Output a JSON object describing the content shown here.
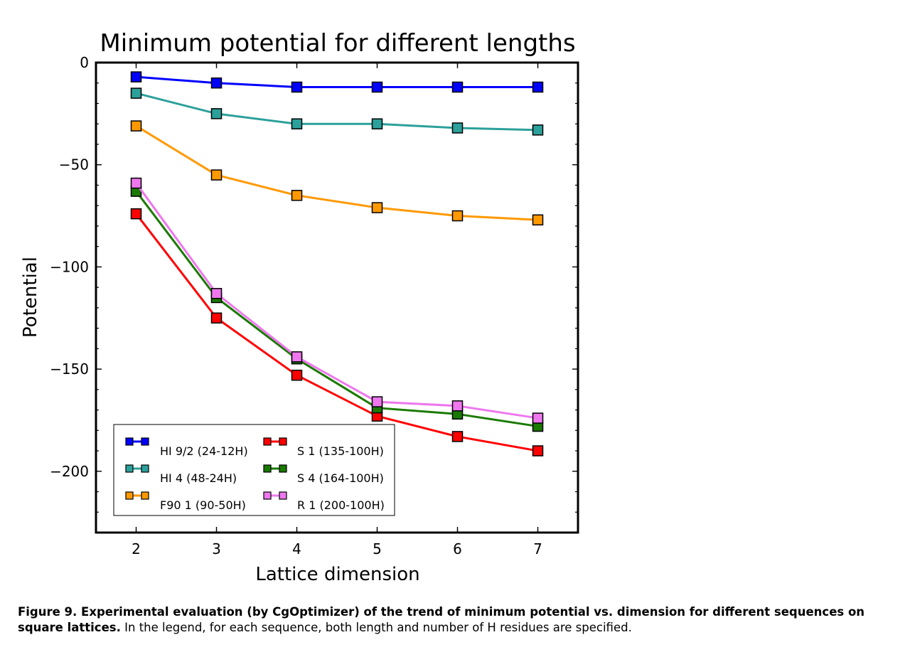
{
  "chart_data": {
    "type": "line",
    "title": "Minimum potential for different lengths",
    "xlabel": "Lattice dimension",
    "ylabel": "Potential",
    "x": [
      2,
      3,
      4,
      5,
      6,
      7
    ],
    "xlim": [
      1.5,
      7.5
    ],
    "ylim": [
      -230,
      0
    ],
    "xticks": [
      2,
      3,
      4,
      5,
      6,
      7
    ],
    "yticks": [
      0,
      -50,
      -100,
      -150,
      -200
    ],
    "ytick_labels": [
      "0",
      "−50",
      "−100",
      "−150",
      "−200"
    ],
    "grid": false,
    "legend_location": "lower-left",
    "series": [
      {
        "name": "HI 9/2 (24-12H)",
        "color": "#0000ff",
        "values": [
          -7,
          -10,
          -12,
          -12,
          -12,
          -12
        ]
      },
      {
        "name": "HI 4 (48-24H)",
        "color": "#2ca09a",
        "values": [
          -15,
          -25,
          -30,
          -30,
          -32,
          -33
        ]
      },
      {
        "name": "F90 1 (90-50H)",
        "color": "#ff9900",
        "values": [
          -31,
          -55,
          -65,
          -71,
          -75,
          -77
        ]
      },
      {
        "name": "S 1 (135-100H)",
        "color": "#ff0000",
        "values": [
          -74,
          -125,
          -153,
          -173,
          -183,
          -190
        ]
      },
      {
        "name": "S 4 (164-100H)",
        "color": "#1a7a00",
        "values": [
          -63,
          -115,
          -145,
          -169,
          -172,
          -178
        ]
      },
      {
        "name": "R 1 (200-100H)",
        "color": "#ee77ee",
        "values": [
          -59,
          -113,
          -144,
          -166,
          -168,
          -174
        ]
      }
    ]
  },
  "caption": {
    "bold": "Figure 9. Experimental evaluation (by CgOptimizer) of the trend of minimum potential vs. dimension for different sequences on square lattices.",
    "text": " In the legend, for each sequence, both length and number of H residues are specified."
  }
}
